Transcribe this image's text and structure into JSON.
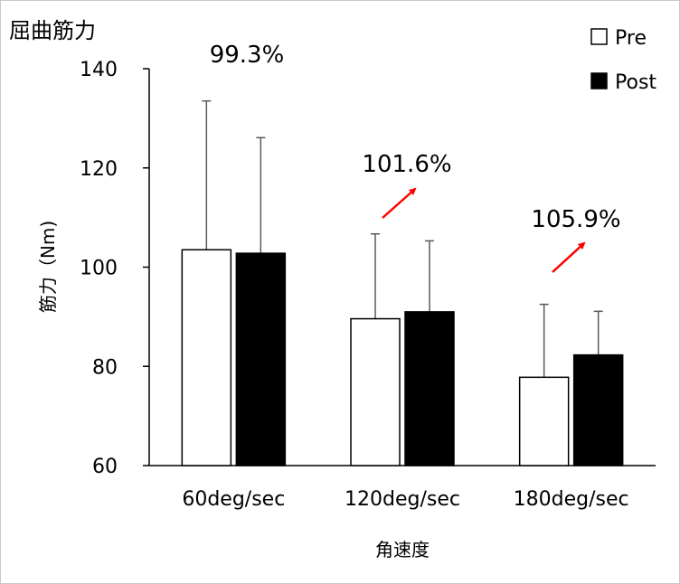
{
  "chart_data": {
    "type": "bar",
    "title": "屈曲筋力",
    "xlabel": "角速度",
    "ylabel": "筋力（Nm)",
    "ylim": [
      60,
      140
    ],
    "yticks": [
      60,
      80,
      100,
      120,
      140
    ],
    "grid": false,
    "legend_position": "top-right",
    "categories": [
      "60deg/sec",
      "120deg/sec",
      "180deg/sec"
    ],
    "series": [
      {
        "name": "Pre",
        "fill": "#ffffff",
        "values": [
          103.5,
          89.6,
          77.8
        ],
        "error": [
          30.0,
          17.1,
          14.7
        ]
      },
      {
        "name": "Post",
        "fill": "#000000",
        "values": [
          102.8,
          91.0,
          82.3
        ],
        "error": [
          23.3,
          14.3,
          8.8
        ]
      }
    ],
    "annotations": [
      {
        "category": "60deg/sec",
        "text": "99.3%",
        "arrow": false
      },
      {
        "category": "120deg/sec",
        "text": "101.6%",
        "arrow": true
      },
      {
        "category": "180deg/sec",
        "text": "105.9%",
        "arrow": true
      }
    ],
    "arrow_color": "#ff0000"
  }
}
